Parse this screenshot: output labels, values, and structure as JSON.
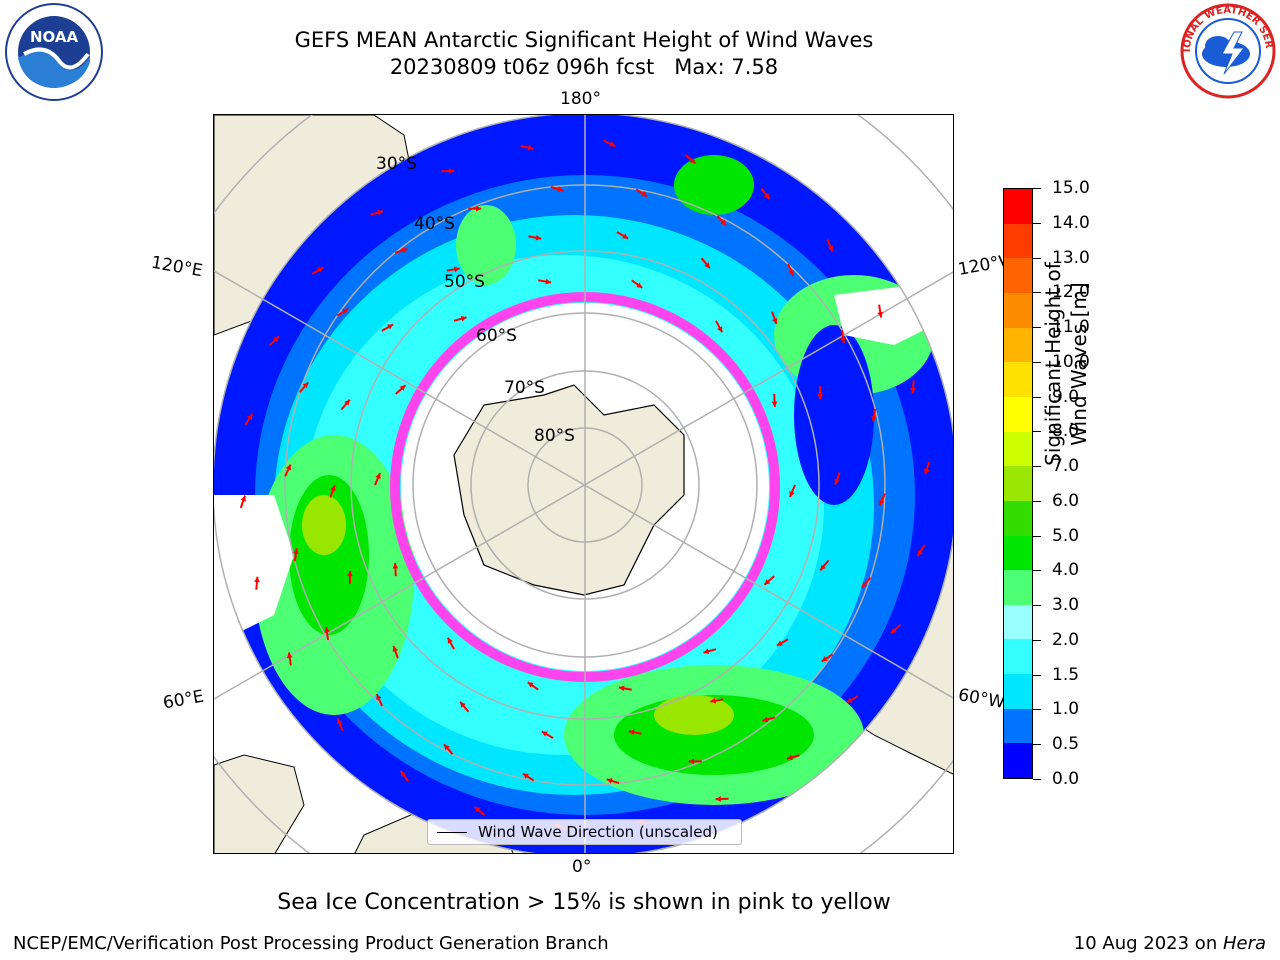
{
  "title": {
    "line1": "GEFS MEAN Antarctic Significant Height of Wind Waves",
    "line2": "20230809 t06z 096h fcst   Max: 7.58"
  },
  "map": {
    "projection": "south-polar-stereographic",
    "lon_labels": {
      "top": "180°",
      "bottom": "0°",
      "left_upper": "120°E",
      "left_lower": "60°E",
      "right_upper": "120°W",
      "right_lower": "60°W"
    },
    "lat_labels": [
      "30°S",
      "40°S",
      "50°S",
      "60°S",
      "70°S",
      "80°S"
    ],
    "land_color": "#efecdc",
    "ocean_background": "#0018ff",
    "arrow_color": "#ff0000",
    "sea_ice_color": "#ff44ee"
  },
  "legend": {
    "label": "Wind Wave Direction (unscaled)"
  },
  "colorbar": {
    "title": "Significant Height of Wind Waves [m]",
    "ticks": [
      "0.0",
      "0.5",
      "1.0",
      "1.5",
      "2.0",
      "3.0",
      "4.0",
      "5.0",
      "6.0",
      "7.0",
      "8.0",
      "9.0",
      "10.0",
      "11.0",
      "12.0",
      "13.0",
      "14.0",
      "15.0"
    ],
    "colors": [
      "#0000ff",
      "#0073ff",
      "#00e6ff",
      "#33ffff",
      "#99ffff",
      "#4dff73",
      "#00e600",
      "#33dd00",
      "#99e600",
      "#ccff00",
      "#ffff00",
      "#ffe000",
      "#ffb400",
      "#ff8c00",
      "#ff6400",
      "#ff3c00",
      "#ff0000"
    ]
  },
  "caption": "Sea Ice Concentration > 15% is shown in pink to yellow",
  "footer": {
    "left": "NCEP/EMC/Verification Post Processing Product Generation Branch",
    "right_date": "10 Aug 2023 on ",
    "right_system": "Hera"
  },
  "logos": {
    "noaa": "NOAA",
    "nws": "NATIONAL WEATHER SERVICE"
  }
}
